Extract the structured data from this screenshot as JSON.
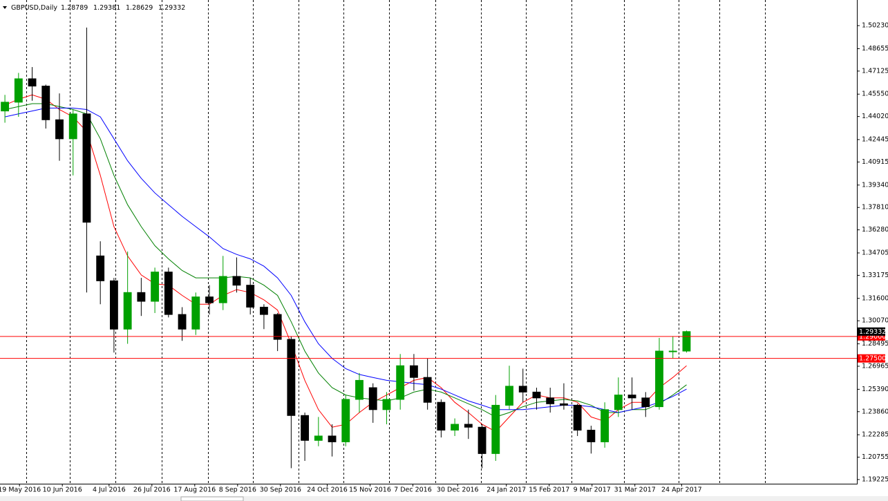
{
  "chart_data": {
    "type": "candlestick",
    "title": "GBPUSD,Daily",
    "last_ohlc": [
      1.28789,
      1.29381,
      1.28629,
      1.29332
    ],
    "xlim": [
      "9 May 2016",
      "23 Jul 2017"
    ],
    "ylim": [
      1.1894,
      1.5198
    ],
    "yticks": [
      {
        "value": 1.5023,
        "label": "1.50230"
      },
      1.48655,
      1.47125,
      {
        "value": 1.4555,
        "label": "1.45550"
      },
      {
        "value": 1.4402,
        "label": "1.44020"
      },
      1.42445,
      1.40915,
      {
        "value": 1.3934,
        "label": "1.39340"
      },
      {
        "value": 1.3781,
        "label": "1.37810"
      },
      {
        "value": 1.3628,
        "label": "1.36280"
      },
      1.34705,
      1.33175,
      {
        "value": 1.316,
        "label": "1.31600"
      },
      {
        "value": 1.3007,
        "label": "1.30070"
      },
      1.28495,
      1.26965,
      {
        "value": 1.2539,
        "label": "1.25390"
      },
      {
        "value": 1.2386,
        "label": "1.23860"
      },
      1.22285,
      1.20755,
      1.19225
    ],
    "xticks": [
      "19 May 2016",
      "10 Jun 2016",
      "4 Jul 2016",
      "26 Jul 2016",
      "17 Aug 2016",
      "8 Sep 2016",
      "30 Sep 2016",
      "24 Oct 2016",
      "15 Nov 2016",
      "7 Dec 2016",
      "30 Dec 2016",
      "24 Jan 2017",
      "15 Feb 2017",
      "9 Mar 2017",
      "31 Mar 2017",
      "24 Apr 2017"
    ],
    "hlines": [
      {
        "value": 1.29,
        "label": "1.29000",
        "color": "#ff0000"
      },
      {
        "value": 1.275,
        "label": "1.27500",
        "color": "#ff0000"
      }
    ],
    "up_color": "#00a000",
    "down_color": "#000000",
    "x": [
      "9 May 2016",
      "16 May 2016",
      "23 May 2016",
      "30 May 2016",
      "6 Jun 2016",
      "13 Jun 2016",
      "20 Jun 2016",
      "27 Jun 2016",
      "4 Jul 2016",
      "11 Jul 2016",
      "18 Jul 2016",
      "25 Jul 2016",
      "1 Aug 2016",
      "8 Aug 2016",
      "15 Aug 2016",
      "22 Aug 2016",
      "29 Aug 2016",
      "5 Sep 2016",
      "12 Sep 2016",
      "19 Sep 2016",
      "26 Sep 2016",
      "3 Oct 2016",
      "10 Oct 2016",
      "17 Oct 2016",
      "24 Oct 2016",
      "31 Oct 2016",
      "7 Nov 2016",
      "14 Nov 2016",
      "21 Nov 2016",
      "28 Nov 2016",
      "5 Dec 2016",
      "12 Dec 2016",
      "19 Dec 2016",
      "26 Dec 2016",
      "2 Jan 2017",
      "9 Jan 2017",
      "16 Jan 2017",
      "23 Jan 2017",
      "30 Jan 2017",
      "6 Feb 2017",
      "13 Feb 2017",
      "20 Feb 2017",
      "27 Feb 2017",
      "6 Mar 2017",
      "13 Mar 2017",
      "20 Mar 2017",
      "27 Mar 2017",
      "3 Apr 2017",
      "10 Apr 2017",
      "17 Apr 2017",
      "24 Apr 2017"
    ],
    "open": [
      1.444,
      1.45,
      1.466,
      1.461,
      1.438,
      1.425,
      1.442,
      1.345,
      1.328,
      1.295,
      1.32,
      1.314,
      1.334,
      1.305,
      1.295,
      1.317,
      1.313,
      1.331,
      1.325,
      1.31,
      1.305,
      1.288,
      1.236,
      1.219,
      1.222,
      1.218,
      1.247,
      1.255,
      1.24,
      1.247,
      1.27,
      1.262,
      1.245,
      1.226,
      1.23,
      1.228,
      1.21,
      1.243,
      1.256,
      1.252,
      1.248,
      1.244,
      1.243,
      1.226,
      1.218,
      1.24,
      1.25,
      1.248,
      1.242,
      1.28,
      1.28
    ],
    "high": [
      1.455,
      1.47,
      1.474,
      1.462,
      1.456,
      1.445,
      1.501,
      1.355,
      1.33,
      1.348,
      1.33,
      1.337,
      1.337,
      1.31,
      1.32,
      1.325,
      1.345,
      1.344,
      1.33,
      1.312,
      1.306,
      1.29,
      1.238,
      1.235,
      1.23,
      1.25,
      1.265,
      1.258,
      1.252,
      1.278,
      1.278,
      1.275,
      1.247,
      1.234,
      1.24,
      1.23,
      1.25,
      1.27,
      1.268,
      1.255,
      1.255,
      1.258,
      1.244,
      1.229,
      1.245,
      1.262,
      1.262,
      1.252,
      1.289,
      1.29,
      1.294
    ],
    "low": [
      1.436,
      1.44,
      1.451,
      1.432,
      1.41,
      1.4,
      1.32,
      1.312,
      1.279,
      1.285,
      1.304,
      1.306,
      1.303,
      1.287,
      1.291,
      1.305,
      1.308,
      1.32,
      1.305,
      1.295,
      1.28,
      1.2,
      1.205,
      1.215,
      1.208,
      1.215,
      1.238,
      1.231,
      1.23,
      1.24,
      1.253,
      1.24,
      1.221,
      1.222,
      1.22,
      1.2,
      1.205,
      1.24,
      1.245,
      1.24,
      1.238,
      1.24,
      1.222,
      1.21,
      1.214,
      1.235,
      1.24,
      1.235,
      1.24,
      1.275,
      1.279
    ],
    "close": [
      1.45,
      1.466,
      1.461,
      1.438,
      1.425,
      1.442,
      1.368,
      1.328,
      1.295,
      1.32,
      1.314,
      1.334,
      1.305,
      1.295,
      1.317,
      1.313,
      1.331,
      1.325,
      1.31,
      1.305,
      1.288,
      1.236,
      1.219,
      1.222,
      1.218,
      1.247,
      1.26,
      1.24,
      1.247,
      1.27,
      1.262,
      1.245,
      1.226,
      1.23,
      1.228,
      1.21,
      1.243,
      1.256,
      1.252,
      1.248,
      1.244,
      1.243,
      1.226,
      1.218,
      1.24,
      1.25,
      1.248,
      1.242,
      1.28,
      1.28,
      1.29332
    ],
    "series": [
      {
        "color": "#ff0000",
        "values": [
          1.448,
          1.452,
          1.455,
          1.452,
          1.445,
          1.44,
          1.43,
          1.4,
          1.365,
          1.345,
          1.332,
          1.326,
          1.325,
          1.318,
          1.312,
          1.312,
          1.318,
          1.322,
          1.32,
          1.315,
          1.308,
          1.285,
          1.26,
          1.24,
          1.228,
          1.23,
          1.238,
          1.245,
          1.25,
          1.255,
          1.26,
          1.262,
          1.255,
          1.245,
          1.238,
          1.23,
          1.225,
          1.235,
          1.245,
          1.25,
          1.248,
          1.248,
          1.245,
          1.235,
          1.232,
          1.24,
          1.245,
          1.245,
          1.255,
          1.262,
          1.27
        ]
      },
      {
        "color": "#008000",
        "values": [
          1.445,
          1.447,
          1.449,
          1.449,
          1.447,
          1.445,
          1.442,
          1.425,
          1.4,
          1.38,
          1.365,
          1.352,
          1.343,
          1.335,
          1.33,
          1.33,
          1.33,
          1.331,
          1.33,
          1.325,
          1.318,
          1.3,
          1.28,
          1.265,
          1.255,
          1.25,
          1.248,
          1.247,
          1.246,
          1.248,
          1.252,
          1.254,
          1.252,
          1.248,
          1.244,
          1.24,
          1.235,
          1.238,
          1.242,
          1.245,
          1.246,
          1.247,
          1.246,
          1.243,
          1.238,
          1.238,
          1.24,
          1.24,
          1.244,
          1.25,
          1.257
        ]
      },
      {
        "color": "#0000ff",
        "values": [
          1.44,
          1.442,
          1.444,
          1.446,
          1.446,
          1.446,
          1.445,
          1.44,
          1.425,
          1.41,
          1.398,
          1.388,
          1.38,
          1.372,
          1.365,
          1.358,
          1.35,
          1.346,
          1.343,
          1.338,
          1.33,
          1.318,
          1.3,
          1.285,
          1.275,
          1.268,
          1.264,
          1.262,
          1.26,
          1.259,
          1.258,
          1.257,
          1.254,
          1.25,
          1.246,
          1.243,
          1.24,
          1.24,
          1.24,
          1.241,
          1.242,
          1.243,
          1.243,
          1.242,
          1.24,
          1.238,
          1.24,
          1.242,
          1.245,
          1.249,
          1.254
        ]
      }
    ]
  }
}
